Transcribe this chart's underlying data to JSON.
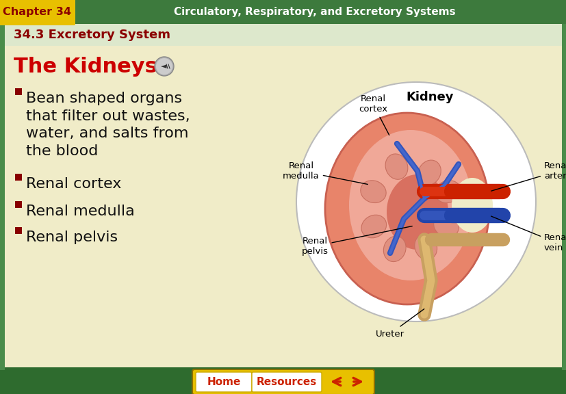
{
  "header_bg": "#3d7a3d",
  "header_text_color": "#ffffff",
  "chapter_label": "Chapter 34",
  "chapter_label_bg": "#e8c000",
  "chapter_label_text_color": "#8b0000",
  "header_title": "Circulatory, Respiratory, and Excretory Systems",
  "section_title": "34.3 Excretory System",
  "section_title_color": "#8b0000",
  "main_bg": "#f0ecc8",
  "border_color": "#2e6b2e",
  "border_color2": "#4a8c4a",
  "slide_title": "The Kidneys",
  "slide_title_color": "#cc0000",
  "bullet_color": "#880000",
  "bullets": [
    "Bean shaped organs\nthat filter out wastes,\nwater, and salts from\nthe blood",
    "Renal cortex",
    "Renal medulla",
    "Renal pelvis"
  ],
  "bullet_text_color": "#111111",
  "kidney_title": "Kidney",
  "bottom_bar_bg": "#2e6b2e",
  "btn_home_text": "Home",
  "btn_resources_text": "Resources",
  "btn_text_color": "#cc2200",
  "btn_bg": "#e8c000",
  "btn_bg2": "#f5e060",
  "arrow_color": "#cc2200",
  "fig_w": 8.28,
  "fig_h": 5.76,
  "dpi": 100
}
